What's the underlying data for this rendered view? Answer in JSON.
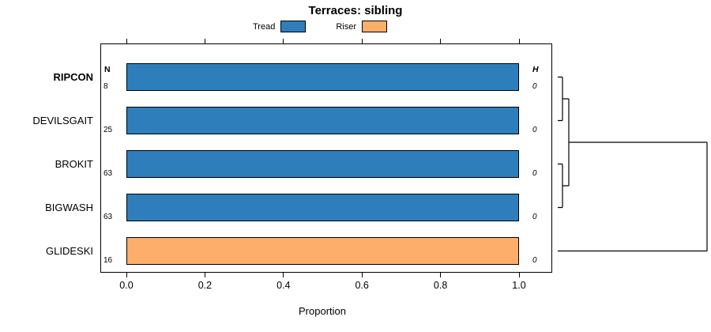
{
  "chart_data": {
    "type": "bar",
    "orientation": "horizontal",
    "stacked": true,
    "title": "Terraces: sibling",
    "xlabel": "Proportion",
    "xlim": [
      0,
      1.08
    ],
    "xticks": [
      "0.0",
      "0.2",
      "0.4",
      "0.6",
      "0.8",
      "1.0"
    ],
    "xtick_values": [
      0,
      0.2,
      0.4,
      0.6,
      0.8,
      1.0
    ],
    "categories": [
      "RIPCON",
      "DEVILSGAIT",
      "BROKIT",
      "BIGWASH",
      "GLIDESKI"
    ],
    "highlighted_category": "RIPCON",
    "series": [
      {
        "name": "Tread",
        "color": "#2E7EBC",
        "values": [
          1.0,
          1.0,
          1.0,
          1.0,
          0.0
        ]
      },
      {
        "name": "Riser",
        "color": "#FDAE6B",
        "values": [
          0.0,
          0.0,
          0.0,
          0.0,
          1.0
        ]
      }
    ],
    "bar_colors": [
      "#2E7EBC",
      "#2E7EBC",
      "#2E7EBC",
      "#2E7EBC",
      "#FDAE6B"
    ],
    "n_header": "N",
    "n_values": [
      "8",
      "25",
      "63",
      "63",
      "16"
    ],
    "h_header": "H",
    "h_values": [
      "0",
      "0",
      "0",
      "0",
      "0"
    ],
    "legend_position": "top",
    "grid": false,
    "dendrogram": {
      "structure": "(((RIPCON,DEVILSGAIT),(BROKIT,BIGWASH)),GLIDESKI)",
      "note": "blue cluster merges near height 0; GLIDESKI joins at maximum height"
    }
  }
}
